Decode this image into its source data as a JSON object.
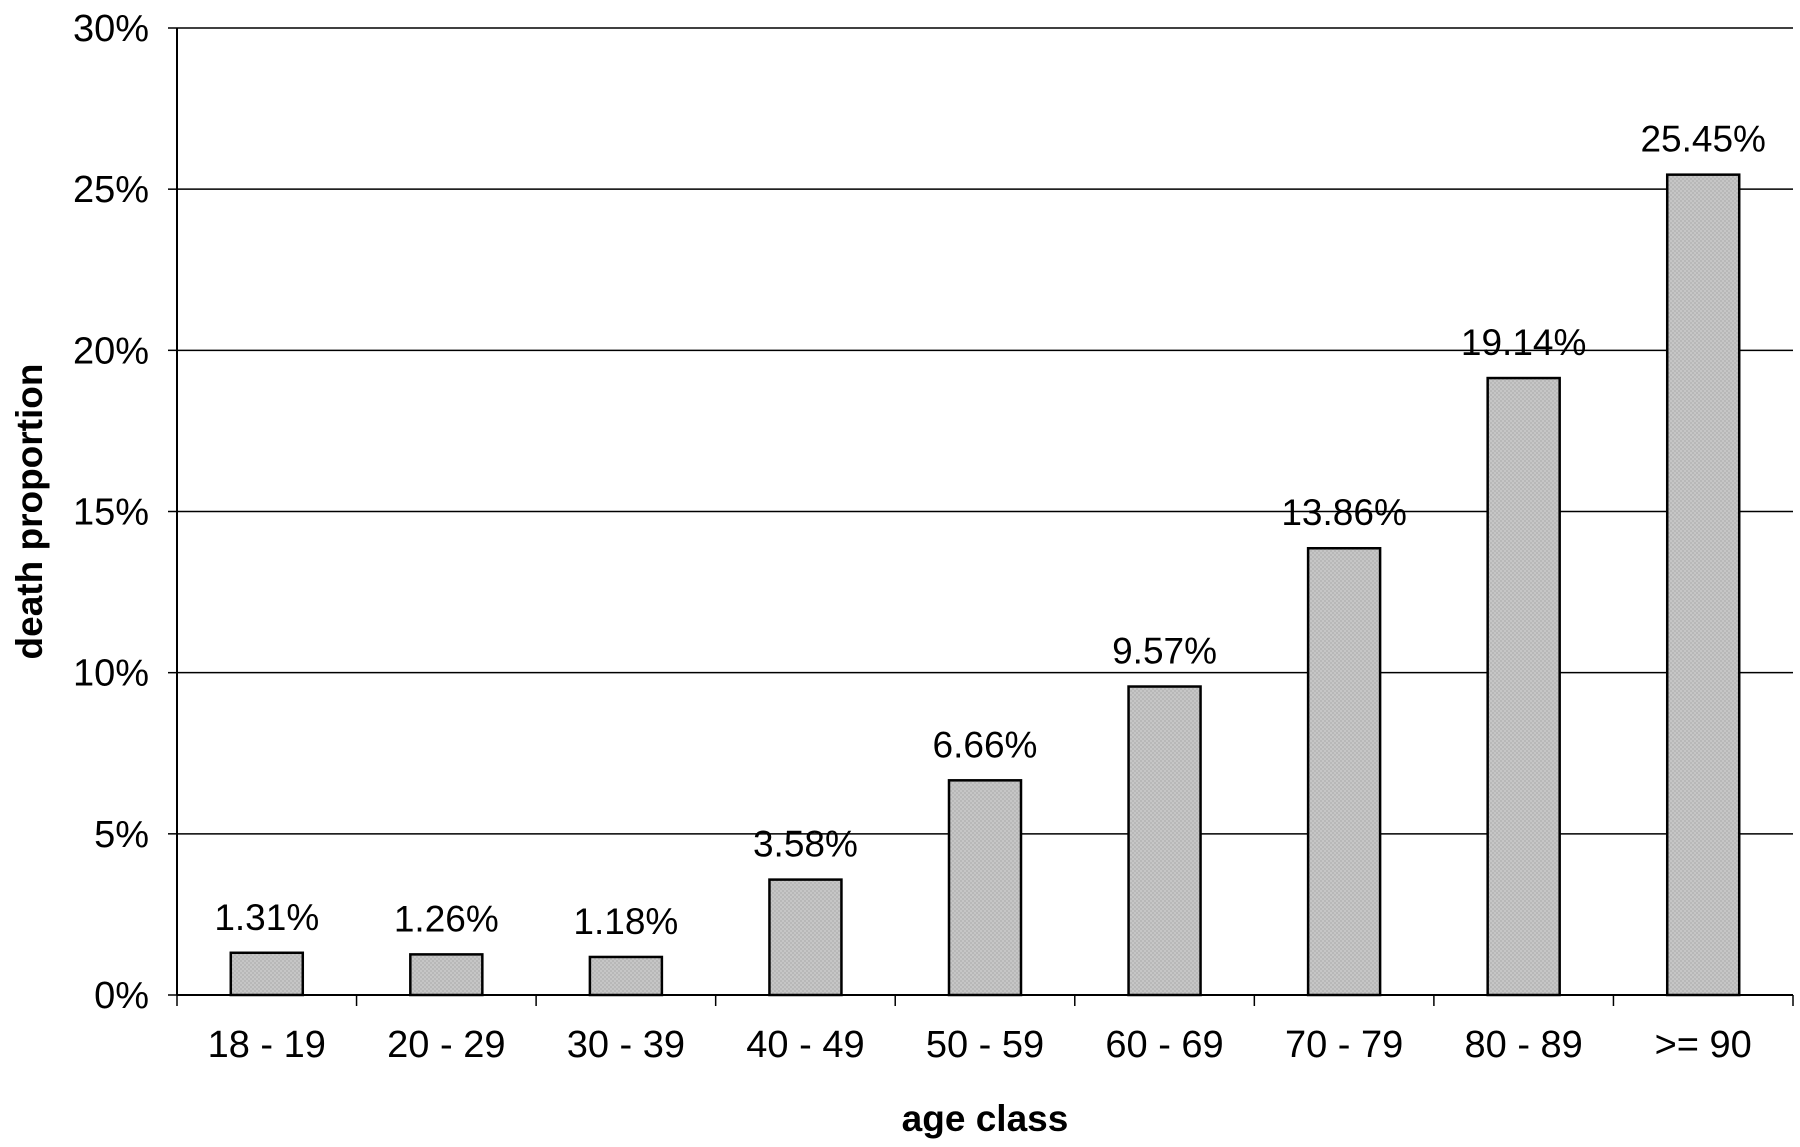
{
  "chart_data": {
    "type": "bar",
    "categories": [
      "18 - 19",
      "20 - 29",
      "30 - 39",
      "40 - 49",
      "50 - 59",
      "60 - 69",
      "70 - 79",
      "80 - 89",
      ">= 90"
    ],
    "values": [
      1.31,
      1.26,
      1.18,
      3.58,
      6.66,
      9.57,
      13.86,
      19.14,
      25.45
    ],
    "data_labels": [
      "1.31%",
      "1.26%",
      "1.18%",
      "3.58%",
      "6.66%",
      "9.57%",
      "13.86%",
      "19.14%",
      "25.45%"
    ],
    "xlabel": "age class",
    "ylabel": "death proportion",
    "ylim": [
      0,
      30
    ],
    "yticks": [
      0,
      5,
      10,
      15,
      20,
      25,
      30
    ],
    "ytick_labels": [
      "0%",
      "5%",
      "10%",
      "15%",
      "20%",
      "25%",
      "30%"
    ],
    "grid": "horizontal",
    "legend": "none",
    "colors": {
      "bar_fill": "#c4c4c4",
      "bar_stroke": "#000000",
      "grid": "#000000",
      "axis": "#000000"
    }
  }
}
